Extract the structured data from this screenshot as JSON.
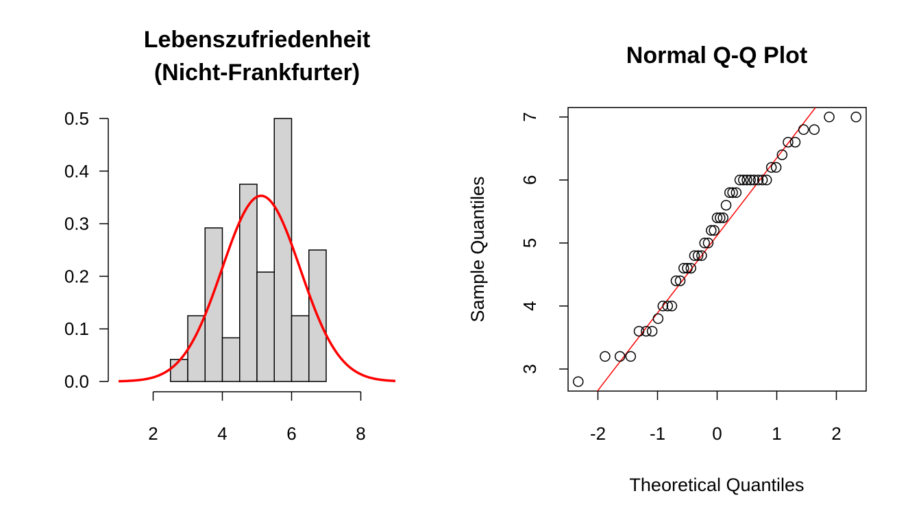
{
  "colors": {
    "bar_fill": "#d3d3d3",
    "bar_stroke": "#000000",
    "density_curve": "#ff0000",
    "qq_line": "#ff0000",
    "points": "#000000"
  },
  "chart_data": [
    {
      "type": "bar",
      "subtype": "histogram",
      "title_lines": [
        "Lebenszufriedenheit",
        "(Nicht-Frankfurter)"
      ],
      "xlabel": "",
      "ylabel": "",
      "bin_edges": [
        2.5,
        3,
        3.5,
        4,
        4.5,
        5,
        5.5,
        6,
        6.5,
        7
      ],
      "values": [
        0.042,
        0.125,
        0.292,
        0.083,
        0.375,
        0.208,
        0.5,
        0.125,
        0.25
      ],
      "xlim": [
        1,
        9
      ],
      "ylim": [
        0,
        0.5
      ],
      "xticks": [
        "2",
        "4",
        "6",
        "8"
      ],
      "yticks": [
        "0.0",
        "0.1",
        "0.2",
        "0.3",
        "0.4",
        "0.5"
      ],
      "overlay": {
        "type": "normal-density",
        "mean": 5.12,
        "sd": 1.13
      },
      "grid": false
    },
    {
      "type": "scatter",
      "subtype": "qq-plot",
      "title": "Normal Q-Q Plot",
      "xlabel": "Theoretical Quantiles",
      "ylabel": "Sample Quantiles",
      "xlim": [
        -2.5,
        2.5
      ],
      "ylim": [
        2.65,
        7.15
      ],
      "xticks": [
        "-2",
        "-1",
        "0",
        "1",
        "2"
      ],
      "yticks": [
        "3",
        "4",
        "5",
        "6",
        "7"
      ],
      "x": [
        -2.33,
        -1.88,
        -1.63,
        -1.45,
        -1.31,
        -1.19,
        -1.09,
        -0.99,
        -0.91,
        -0.83,
        -0.76,
        -0.69,
        -0.62,
        -0.56,
        -0.5,
        -0.44,
        -0.38,
        -0.32,
        -0.26,
        -0.21,
        -0.15,
        -0.1,
        -0.05,
        0.0,
        0.05,
        0.1,
        0.15,
        0.21,
        0.26,
        0.32,
        0.38,
        0.44,
        0.5,
        0.56,
        0.62,
        0.69,
        0.76,
        0.83,
        0.91,
        0.99,
        1.09,
        1.19,
        1.31,
        1.45,
        1.63,
        1.88,
        2.33
      ],
      "y": [
        2.8,
        3.2,
        3.2,
        3.2,
        3.6,
        3.6,
        3.6,
        3.8,
        4.0,
        4.0,
        4.0,
        4.4,
        4.4,
        4.6,
        4.6,
        4.6,
        4.8,
        4.8,
        4.8,
        5.0,
        5.0,
        5.2,
        5.2,
        5.4,
        5.4,
        5.4,
        5.6,
        5.8,
        5.8,
        5.8,
        6.0,
        6.0,
        6.0,
        6.0,
        6.0,
        6.0,
        6.0,
        6.0,
        6.2,
        6.2,
        6.4,
        6.6,
        6.6,
        6.8,
        6.8,
        7.0,
        7.0
      ],
      "reference_line": {
        "intercept": 5.12,
        "slope": 1.23
      },
      "grid": false
    }
  ]
}
